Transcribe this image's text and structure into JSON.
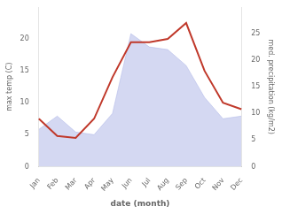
{
  "chart_data": {
    "type": "line",
    "xlabel": "date (month)",
    "ylabel": "max temp (C)",
    "y2label": "med. precipitation (kg/m2)",
    "categories": [
      "Jan",
      "Feb",
      "Mar",
      "Apr",
      "May",
      "Jun",
      "Jul",
      "Aug",
      "Sep",
      "Oct",
      "Nov",
      "Dec"
    ],
    "series": [
      {
        "type": "area",
        "axis": "y2",
        "color": "#b0b8e8",
        "values": [
          7.0,
          9.5,
          6.5,
          6.0,
          10.0,
          25.0,
          22.5,
          22.0,
          19.0,
          13.0,
          9.0,
          9.5
        ]
      },
      {
        "type": "line",
        "color": "#c0392b",
        "values": [
          7.5,
          4.8,
          4.5,
          7.5,
          14.0,
          19.5,
          19.5,
          20.0,
          22.5,
          15.0,
          10.0,
          9.0
        ]
      }
    ],
    "ylim": [
      0,
      25
    ],
    "yticks": [
      0,
      5,
      10,
      15,
      20
    ],
    "y2lim": [
      0,
      30
    ],
    "y2ticks": [
      0,
      5,
      10,
      15,
      20,
      25
    ],
    "grid": false
  }
}
